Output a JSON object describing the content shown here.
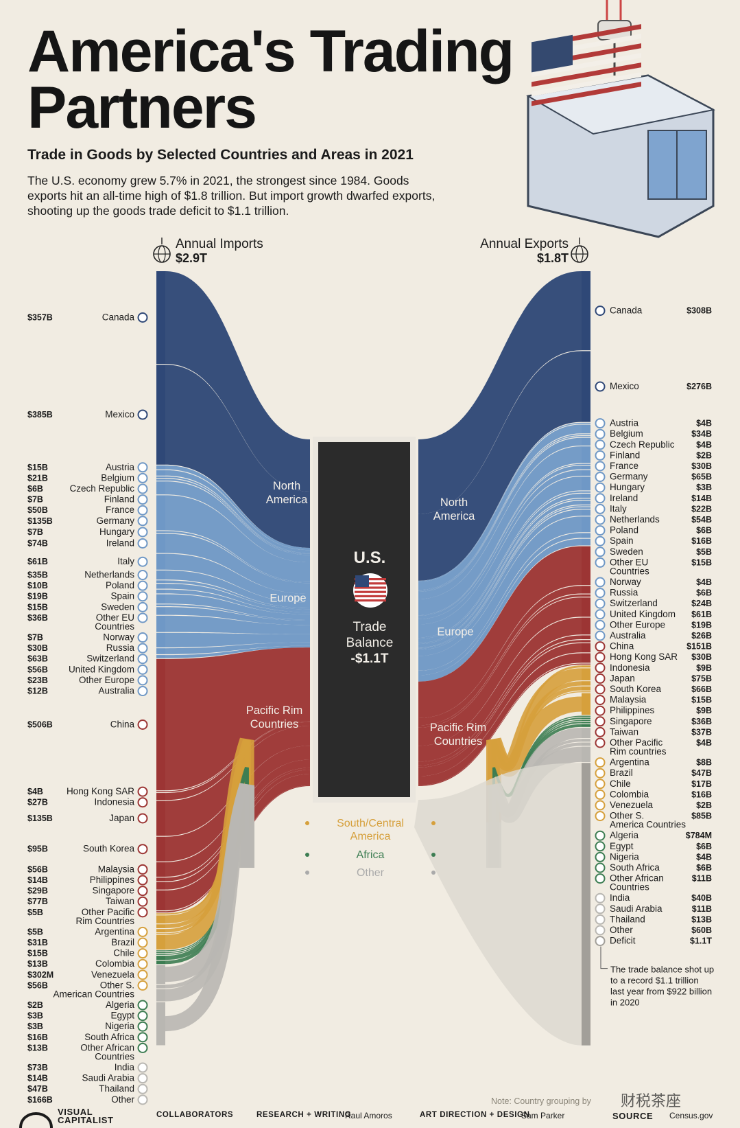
{
  "title_line1": "America's Trading",
  "title_line2": "Partners",
  "subtitle": "Trade in Goods by Selected Countries and Areas in 2021",
  "intro": "The U.S. economy grew 5.7% in 2021, the strongest since 1984. Goods exports hit an all-time high of $1.8 trillion. But import growth dwarfed exports, shooting up the goods trade deficit to $1.1 trillion.",
  "imports_header": {
    "label": "Annual Imports",
    "total": "$2.9T"
  },
  "exports_header": {
    "label": "Annual Exports",
    "total": "$1.8T"
  },
  "center": {
    "country": "U.S.",
    "line1": "Trade",
    "line2": "Balance",
    "value": "-$1.1T"
  },
  "colors": {
    "north_america": "#2f4877",
    "europe": "#6f98c6",
    "pacific": "#9c3534",
    "south_america": "#d6a03c",
    "africa": "#3c7d52",
    "other": "#b9b7b2",
    "deficit": "#a29f99",
    "bg": "#f1ece2"
  },
  "chart_data": {
    "type": "sankey",
    "title": "America's Trading Partners",
    "units": "USD",
    "imports": [
      {
        "country": "Canada",
        "value": "$357B",
        "region": "North America"
      },
      {
        "country": "Mexico",
        "value": "$385B",
        "region": "North America"
      },
      {
        "country": "Austria",
        "value": "$15B",
        "region": "Europe"
      },
      {
        "country": "Belgium",
        "value": "$21B",
        "region": "Europe"
      },
      {
        "country": "Czech Republic",
        "value": "$6B",
        "region": "Europe"
      },
      {
        "country": "Finland",
        "value": "$7B",
        "region": "Europe"
      },
      {
        "country": "France",
        "value": "$50B",
        "region": "Europe"
      },
      {
        "country": "Germany",
        "value": "$135B",
        "region": "Europe"
      },
      {
        "country": "Hungary",
        "value": "$7B",
        "region": "Europe"
      },
      {
        "country": "Ireland",
        "value": "$74B",
        "region": "Europe"
      },
      {
        "country": "Italy",
        "value": "$61B",
        "region": "Europe"
      },
      {
        "country": "Netherlands",
        "value": "$35B",
        "region": "Europe"
      },
      {
        "country": "Poland",
        "value": "$10B",
        "region": "Europe"
      },
      {
        "country": "Spain",
        "value": "$19B",
        "region": "Europe"
      },
      {
        "country": "Sweden",
        "value": "$15B",
        "region": "Europe"
      },
      {
        "country": "Other EU Countries",
        "value": "$36B",
        "region": "Europe"
      },
      {
        "country": "Norway",
        "value": "$7B",
        "region": "Europe"
      },
      {
        "country": "Russia",
        "value": "$30B",
        "region": "Europe"
      },
      {
        "country": "Switzerland",
        "value": "$63B",
        "region": "Europe"
      },
      {
        "country": "United Kingdom",
        "value": "$56B",
        "region": "Europe"
      },
      {
        "country": "Other Europe",
        "value": "$23B",
        "region": "Europe"
      },
      {
        "country": "Australia",
        "value": "$12B",
        "region": "Europe"
      },
      {
        "country": "China",
        "value": "$506B",
        "region": "Pacific Rim Countries"
      },
      {
        "country": "Hong Kong SAR",
        "value": "$4B",
        "region": "Pacific Rim Countries"
      },
      {
        "country": "Indonesia",
        "value": "$27B",
        "region": "Pacific Rim Countries"
      },
      {
        "country": "Japan",
        "value": "$135B",
        "region": "Pacific Rim Countries"
      },
      {
        "country": "South Korea",
        "value": "$95B",
        "region": "Pacific Rim Countries"
      },
      {
        "country": "Malaysia",
        "value": "$56B",
        "region": "Pacific Rim Countries"
      },
      {
        "country": "Philippines",
        "value": "$14B",
        "region": "Pacific Rim Countries"
      },
      {
        "country": "Singapore",
        "value": "$29B",
        "region": "Pacific Rim Countries"
      },
      {
        "country": "Taiwan",
        "value": "$77B",
        "region": "Pacific Rim Countries"
      },
      {
        "country": "Other Pacific Rim Countries",
        "value": "$5B",
        "region": "Pacific Rim Countries"
      },
      {
        "country": "Argentina",
        "value": "$5B",
        "region": "South/Central America"
      },
      {
        "country": "Brazil",
        "value": "$31B",
        "region": "South/Central America"
      },
      {
        "country": "Chile",
        "value": "$15B",
        "region": "South/Central America"
      },
      {
        "country": "Colombia",
        "value": "$13B",
        "region": "South/Central America"
      },
      {
        "country": "Venezuela",
        "value": "$302M",
        "region": "South/Central America"
      },
      {
        "country": "Other S. American Countries",
        "value": "$56B",
        "region": "South/Central America"
      },
      {
        "country": "Algeria",
        "value": "$2B",
        "region": "Africa"
      },
      {
        "country": "Egypt",
        "value": "$3B",
        "region": "Africa"
      },
      {
        "country": "Nigeria",
        "value": "$3B",
        "region": "Africa"
      },
      {
        "country": "South Africa",
        "value": "$16B",
        "region": "Africa"
      },
      {
        "country": "Other African Countries",
        "value": "$13B",
        "region": "Africa"
      },
      {
        "country": "India",
        "value": "$73B",
        "region": "Other"
      },
      {
        "country": "Saudi Arabia",
        "value": "$14B",
        "region": "Other"
      },
      {
        "country": "Thailand",
        "value": "$47B",
        "region": "Other"
      },
      {
        "country": "Other",
        "value": "$166B",
        "region": "Other"
      }
    ],
    "exports": [
      {
        "country": "Canada",
        "value": "$308B",
        "region": "North America"
      },
      {
        "country": "Mexico",
        "value": "$276B",
        "region": "North America"
      },
      {
        "country": "Austria",
        "value": "$4B",
        "region": "Europe"
      },
      {
        "country": "Belgium",
        "value": "$34B",
        "region": "Europe"
      },
      {
        "country": "Czech Republic",
        "value": "$4B",
        "region": "Europe"
      },
      {
        "country": "Finland",
        "value": "$2B",
        "region": "Europe"
      },
      {
        "country": "France",
        "value": "$30B",
        "region": "Europe"
      },
      {
        "country": "Germany",
        "value": "$65B",
        "region": "Europe"
      },
      {
        "country": "Hungary",
        "value": "$3B",
        "region": "Europe"
      },
      {
        "country": "Ireland",
        "value": "$14B",
        "region": "Europe"
      },
      {
        "country": "Italy",
        "value": "$22B",
        "region": "Europe"
      },
      {
        "country": "Netherlands",
        "value": "$54B",
        "region": "Europe"
      },
      {
        "country": "Poland",
        "value": "$6B",
        "region": "Europe"
      },
      {
        "country": "Spain",
        "value": "$16B",
        "region": "Europe"
      },
      {
        "country": "Sweden",
        "value": "$5B",
        "region": "Europe"
      },
      {
        "country": "Other EU Countries",
        "value": "$15B",
        "region": "Europe"
      },
      {
        "country": "Norway",
        "value": "$4B",
        "region": "Europe"
      },
      {
        "country": "Russia",
        "value": "$6B",
        "region": "Europe"
      },
      {
        "country": "Switzerland",
        "value": "$24B",
        "region": "Europe"
      },
      {
        "country": "United Kingdom",
        "value": "$61B",
        "region": "Europe"
      },
      {
        "country": "Other Europe",
        "value": "$19B",
        "region": "Europe"
      },
      {
        "country": "Australia",
        "value": "$26B",
        "region": "Europe"
      },
      {
        "country": "China",
        "value": "$151B",
        "region": "Pacific Rim Countries"
      },
      {
        "country": "Hong Kong SAR",
        "value": "$30B",
        "region": "Pacific Rim Countries"
      },
      {
        "country": "Indonesia",
        "value": "$9B",
        "region": "Pacific Rim Countries"
      },
      {
        "country": "Japan",
        "value": "$75B",
        "region": "Pacific Rim Countries"
      },
      {
        "country": "South Korea",
        "value": "$66B",
        "region": "Pacific Rim Countries"
      },
      {
        "country": "Malaysia",
        "value": "$15B",
        "region": "Pacific Rim Countries"
      },
      {
        "country": "Philippines",
        "value": "$9B",
        "region": "Pacific Rim Countries"
      },
      {
        "country": "Singapore",
        "value": "$36B",
        "region": "Pacific Rim Countries"
      },
      {
        "country": "Taiwan",
        "value": "$37B",
        "region": "Pacific Rim Countries"
      },
      {
        "country": "Other Pacific Rim countries",
        "value": "$4B",
        "region": "Pacific Rim Countries"
      },
      {
        "country": "Argentina",
        "value": "$8B",
        "region": "South/Central America"
      },
      {
        "country": "Brazil",
        "value": "$47B",
        "region": "South/Central America"
      },
      {
        "country": "Chile",
        "value": "$17B",
        "region": "South/Central America"
      },
      {
        "country": "Colombia",
        "value": "$16B",
        "region": "South/Central America"
      },
      {
        "country": "Venezuela",
        "value": "$2B",
        "region": "South/Central America"
      },
      {
        "country": "Other S. America Countries",
        "value": "$85B",
        "region": "South/Central America"
      },
      {
        "country": "Algeria",
        "value": "$784M",
        "region": "Africa"
      },
      {
        "country": "Egypt",
        "value": "$6B",
        "region": "Africa"
      },
      {
        "country": "Nigeria",
        "value": "$4B",
        "region": "Africa"
      },
      {
        "country": "South Africa",
        "value": "$6B",
        "region": "Africa"
      },
      {
        "country": "Other African Countries",
        "value": "$11B",
        "region": "Africa"
      },
      {
        "country": "India",
        "value": "$40B",
        "region": "Other"
      },
      {
        "country": "Saudi Arabia",
        "value": "$11B",
        "region": "Other"
      },
      {
        "country": "Thailand",
        "value": "$13B",
        "region": "Other"
      },
      {
        "country": "Other",
        "value": "$60B",
        "region": "Other"
      },
      {
        "country": "Deficit",
        "value": "$1.1T",
        "region": "Deficit"
      }
    ],
    "region_labels": {
      "import_side": [
        "North America",
        "Europe",
        "Pacific Rim Countries"
      ],
      "export_side": [
        "North America",
        "Europe",
        "Pacific Rim Countries"
      ],
      "middle": [
        "South/Central America",
        "Africa",
        "Other"
      ]
    },
    "deficit_note": "The trade balance shot up to a record $1.1 trillion last year from $922 billion in 2020"
  },
  "note": "Note: Country grouping by",
  "watermark": "财税茶座",
  "footer": {
    "brand": "VISUAL CAPITALIST",
    "collaborators": "COLLABORATORS",
    "research_label": "RESEARCH + WRITING",
    "research_name": "Raul Amoros",
    "art_label": "ART DIRECTION + DESIGN",
    "art_name": "Sam Parker",
    "source_label": "SOURCE",
    "source_name": "Census.gov"
  }
}
